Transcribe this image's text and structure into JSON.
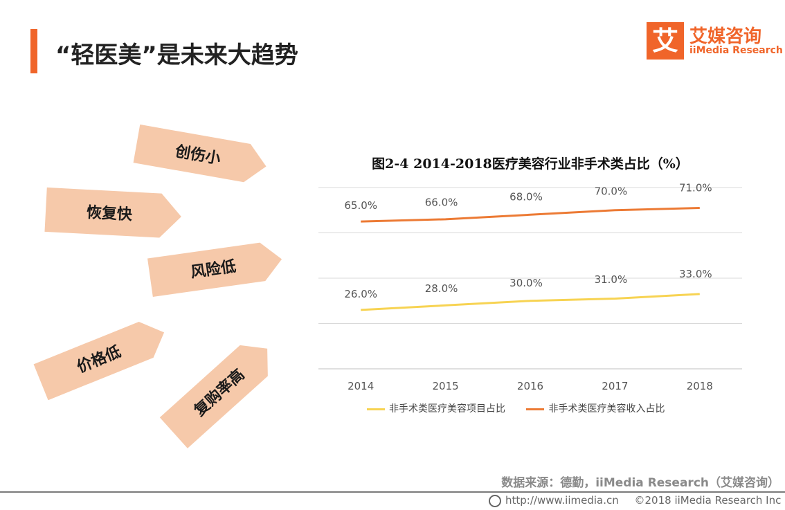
{
  "header": {
    "title": "“轻医美”是未来大趋势",
    "logo_mark": "艾",
    "logo_cn": "艾媒咨询",
    "logo_en": "iiMedia Research"
  },
  "features": [
    "创伤小",
    "恢复快",
    "风险低",
    "价格低",
    "复购率高"
  ],
  "chart_data": {
    "type": "line",
    "title": "图2-4 2014-2018医疗美容行业非手术类占比（%）",
    "categories": [
      "2014",
      "2015",
      "2016",
      "2017",
      "2018"
    ],
    "series": [
      {
        "name": "非手术类医疗美容项目占比",
        "values": [
          26.0,
          28.0,
          30.0,
          31.0,
          33.0
        ],
        "labels": [
          "26.0%",
          "28.0%",
          "30.0%",
          "31.0%",
          "33.0%"
        ],
        "color": "#f7d352"
      },
      {
        "name": "非手术类医疗美容收入占比",
        "values": [
          65.0,
          66.0,
          68.0,
          70.0,
          71.0
        ],
        "labels": [
          "65.0%",
          "66.0%",
          "68.0%",
          "70.0%",
          "71.0%"
        ],
        "color": "#ec7a34"
      }
    ],
    "ylim": [
      0,
      80
    ],
    "grid": true,
    "legend": "bottom"
  },
  "footer": {
    "source": "数据来源：德勤，iiMedia Research（艾媒咨询）",
    "url": "http://www.iimedia.cn",
    "copyright": "©2018 iiMedia Research Inc"
  },
  "colors": {
    "accent": "#f0652a",
    "arrow_fill": "#f6c9aa"
  }
}
